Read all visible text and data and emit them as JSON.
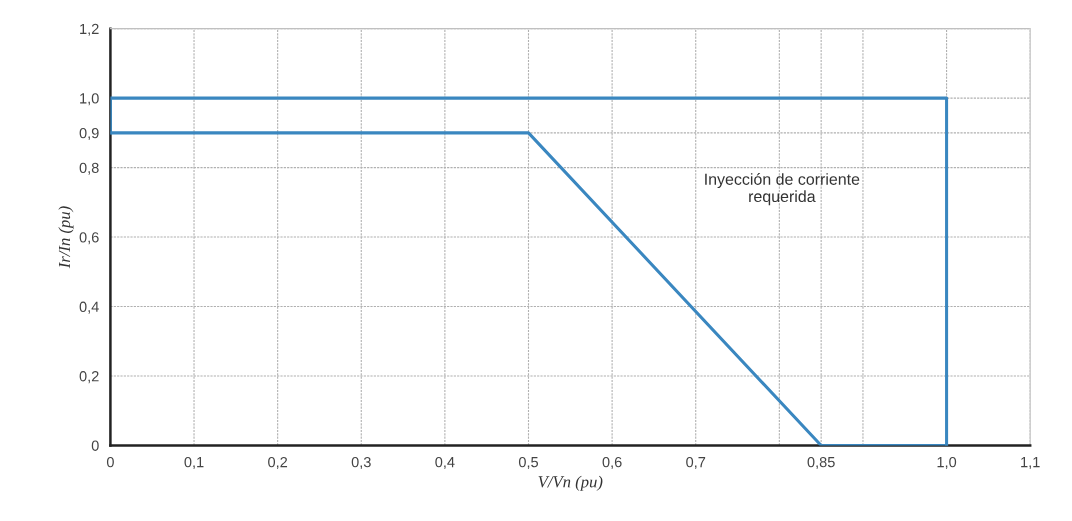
{
  "chart_data": {
    "type": "line",
    "xlabel": "V/Vn (pu)",
    "ylabel": "Ir/In (pu)",
    "series": [
      {
        "color": "#3a87c0",
        "x": [
          0,
          0.5,
          0.85,
          1.0
        ],
        "values": [
          0.9,
          0.9,
          0,
          0
        ]
      },
      {
        "color": "#3a87c0",
        "x": [
          0,
          0,
          1.0,
          1.0
        ],
        "values": [
          0.9,
          1.0,
          1.0,
          0
        ]
      }
    ],
    "xlim": [
      0,
      1.1
    ],
    "ylim": [
      0,
      1.2
    ],
    "xticks": [
      0,
      {
        "value": 0.1,
        "label": "0,1"
      },
      {
        "value": 0.2,
        "label": "0,2"
      },
      {
        "value": 0.3,
        "label": "0,3"
      },
      {
        "value": 0.4,
        "label": "0,4"
      },
      {
        "value": 0.5,
        "label": "0,5"
      },
      {
        "value": 0.6,
        "label": "0,6"
      },
      {
        "value": 0.7,
        "label": "0,7"
      },
      {
        "value": 0.8,
        "label": null
      },
      {
        "value": 0.85,
        "label": "0,85"
      },
      {
        "value": 0.9,
        "label": null
      },
      {
        "value": 1.0,
        "label": "1,0"
      },
      {
        "value": 1.1,
        "label": "1,1"
      }
    ],
    "yticks": [
      0,
      {
        "value": 0.2,
        "label": "0,2"
      },
      {
        "value": 0.4,
        "label": "0,4"
      },
      {
        "value": 0.6,
        "label": "0,6"
      },
      {
        "value": 0.8,
        "label": "0,8"
      },
      {
        "value": 0.9,
        "label": "0,9"
      },
      {
        "value": 1.0,
        "label": "1,0"
      },
      {
        "value": 1.2,
        "label": "1,2"
      }
    ],
    "annotations": [
      "Inyección de corriente\nrequerida"
    ],
    "grid": true,
    "marker": "none",
    "line_style": "solid"
  }
}
